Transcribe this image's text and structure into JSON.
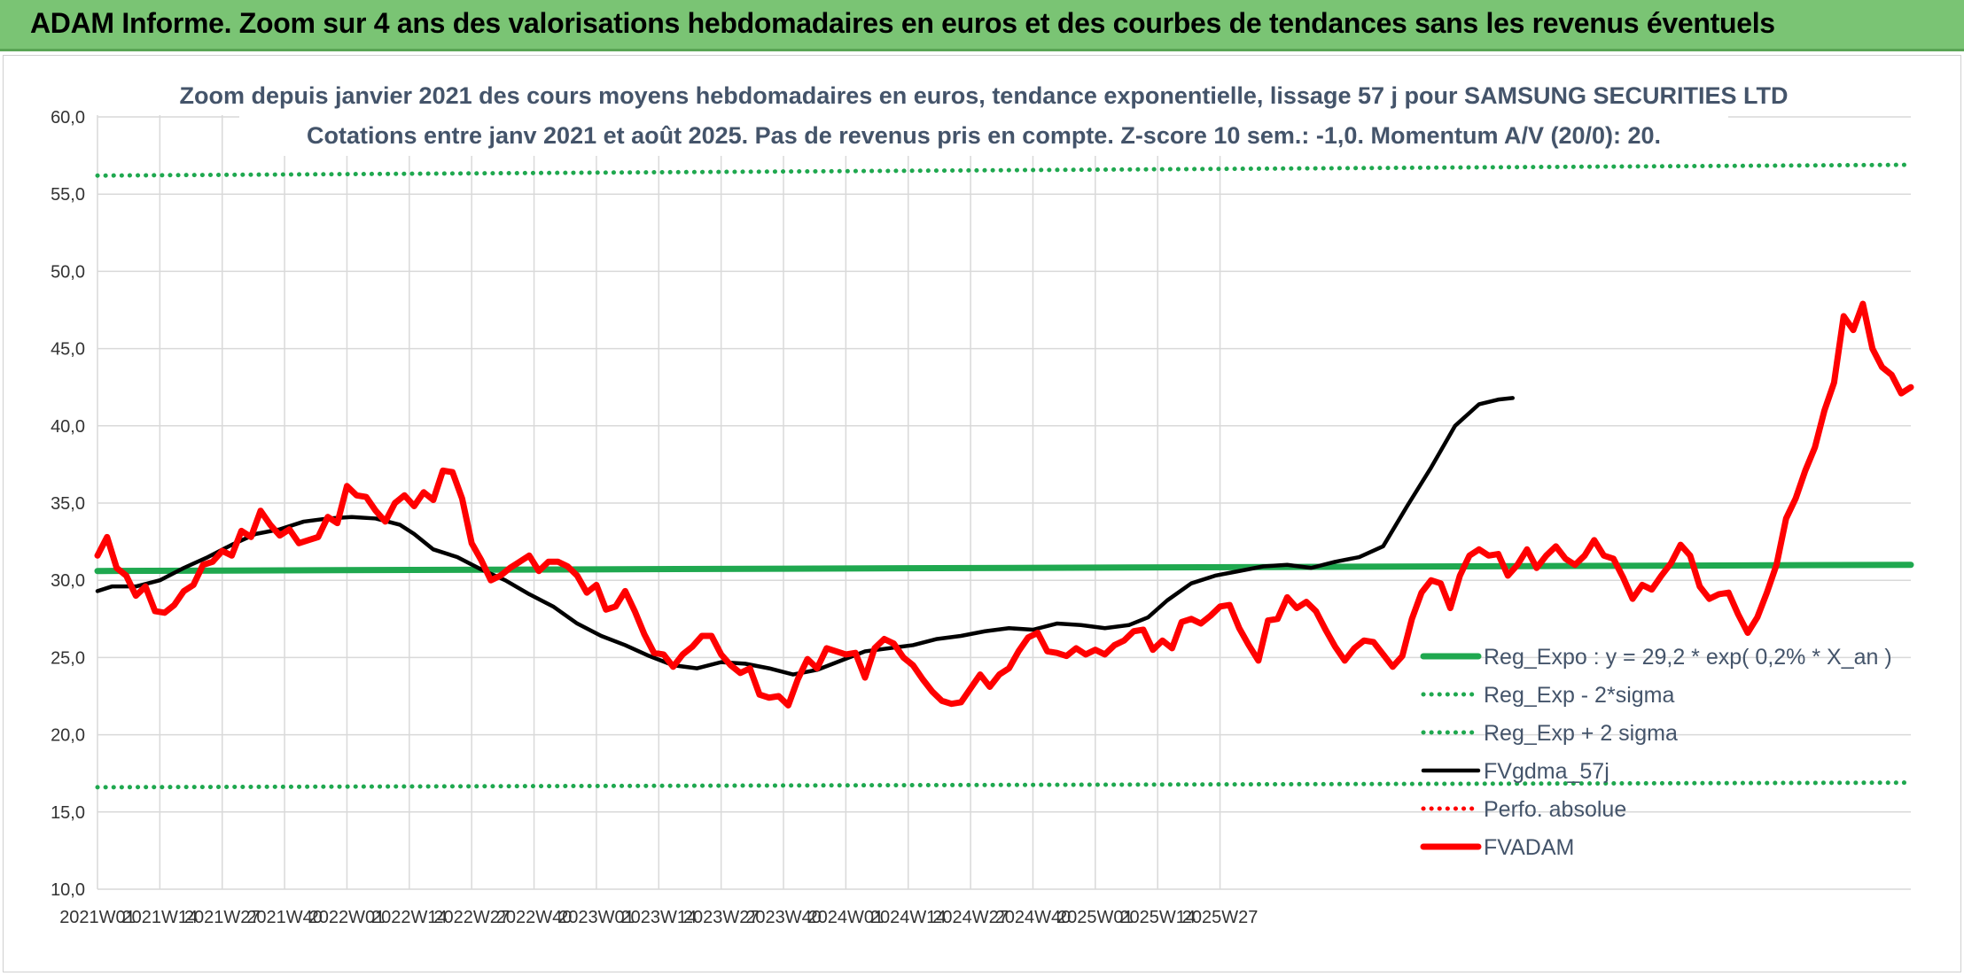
{
  "header": {
    "title": "ADAM Informe. Zoom sur 4 ans des valorisations hebdomadaires en euros et des courbes de tendances sans les revenus éventuels"
  },
  "chart_data": {
    "type": "line",
    "title": "Zoom depuis janvier 2021 des cours moyens hebdomadaires en euros, tendance exponentielle, lissage 57 j pour SAMSUNG SECURITIES LTD",
    "subtitle": "Cotations entre janv 2021 et août 2025. Pas de revenus pris en compte. Z-score 10 sem.: -1,0. Momentum A/V (20/0): 20.",
    "xlabel": "",
    "ylabel": "",
    "ylim": [
      10,
      60
    ],
    "yticks": [
      "10,0",
      "15,0",
      "20,0",
      "25,0",
      "30,0",
      "35,0",
      "40,0",
      "45,0",
      "50,0",
      "55,0",
      "60,0"
    ],
    "x_tick_labels": [
      "2021W01",
      "2021W14",
      "2021W27",
      "2021W40",
      "2022W01",
      "2022W14",
      "2022W27",
      "2022W40",
      "2023W01",
      "2023W14",
      "2023W27",
      "2023W40",
      "2024W01",
      "2024W14",
      "2024W27",
      "2024W40",
      "2025W01",
      "2025W14",
      "2025W27"
    ],
    "grid": true,
    "legend_position": "bottom-right",
    "series": [
      {
        "name": "Reg_Expo : y = 29,2 * exp( 0,2% *  X_an )",
        "color": "#1fa84f",
        "style": "solid-thick",
        "line": [
          [
            0,
            30.6
          ],
          [
            244,
            31.0
          ]
        ]
      },
      {
        "name": "Reg_Exp - 2*sigma",
        "color": "#1fa84f",
        "style": "dotted",
        "line": [
          [
            0,
            16.6
          ],
          [
            244,
            16.9
          ]
        ]
      },
      {
        "name": "Reg_Exp + 2 sigma",
        "color": "#1fa84f",
        "style": "dotted",
        "line": [
          [
            0,
            56.2
          ],
          [
            244,
            56.9
          ]
        ]
      },
      {
        "name": "FVgdma_57j",
        "color": "#000000",
        "style": "solid",
        "points": [
          [
            0,
            29.3
          ],
          [
            3,
            29.6
          ],
          [
            8,
            29.6
          ],
          [
            13,
            30.0
          ],
          [
            18,
            30.8
          ],
          [
            23,
            31.5
          ],
          [
            28,
            32.3
          ],
          [
            33,
            33.0
          ],
          [
            38,
            33.3
          ],
          [
            43,
            33.8
          ],
          [
            48,
            34.0
          ],
          [
            53,
            34.1
          ],
          [
            58,
            34.0
          ],
          [
            63,
            33.6
          ],
          [
            66,
            33.0
          ],
          [
            70,
            32.0
          ],
          [
            75,
            31.5
          ],
          [
            80,
            30.7
          ],
          [
            85,
            30.0
          ],
          [
            90,
            29.1
          ],
          [
            95,
            28.3
          ],
          [
            100,
            27.2
          ],
          [
            105,
            26.4
          ],
          [
            110,
            25.8
          ],
          [
            115,
            25.1
          ],
          [
            120,
            24.5
          ],
          [
            125,
            24.3
          ],
          [
            130,
            24.7
          ],
          [
            135,
            24.6
          ],
          [
            140,
            24.3
          ],
          [
            145,
            23.9
          ],
          [
            150,
            24.2
          ],
          [
            155,
            24.8
          ],
          [
            160,
            25.4
          ],
          [
            165,
            25.6
          ],
          [
            170,
            25.8
          ],
          [
            175,
            26.2
          ],
          [
            180,
            26.4
          ],
          [
            185,
            26.7
          ],
          [
            190,
            26.9
          ],
          [
            195,
            26.8
          ],
          [
            200,
            27.2
          ],
          [
            205,
            27.1
          ],
          [
            210,
            26.9
          ],
          [
            215,
            27.1
          ],
          [
            219,
            27.6
          ],
          [
            223,
            28.7
          ],
          [
            228,
            29.8
          ],
          [
            233,
            30.3
          ],
          [
            238,
            30.6
          ],
          [
            243,
            30.9
          ],
          [
            248,
            31.0
          ],
          [
            253,
            30.8
          ],
          [
            258,
            31.2
          ],
          [
            263,
            31.5
          ],
          [
            268,
            32.2
          ],
          [
            273,
            34.8
          ],
          [
            278,
            37.3
          ],
          [
            283,
            40.0
          ],
          [
            288,
            41.4
          ],
          [
            292,
            41.7
          ],
          [
            295,
            41.8
          ]
        ]
      },
      {
        "name": "Perfo. absolue",
        "color": "#ff0000",
        "style": "dotted",
        "points": []
      },
      {
        "name": "FVADAM",
        "color": "#ff0000",
        "style": "solid-thick",
        "points": [
          [
            0,
            31.6
          ],
          [
            2,
            32.8
          ],
          [
            4,
            30.8
          ],
          [
            6,
            30.3
          ],
          [
            8,
            29.0
          ],
          [
            10,
            29.6
          ],
          [
            12,
            28.0
          ],
          [
            14,
            27.9
          ],
          [
            16,
            28.4
          ],
          [
            18,
            29.3
          ],
          [
            20,
            29.7
          ],
          [
            22,
            31.0
          ],
          [
            24,
            31.2
          ],
          [
            26,
            31.9
          ],
          [
            28,
            31.6
          ],
          [
            30,
            33.2
          ],
          [
            32,
            32.8
          ],
          [
            34,
            34.5
          ],
          [
            36,
            33.6
          ],
          [
            38,
            32.9
          ],
          [
            40,
            33.3
          ],
          [
            42,
            32.4
          ],
          [
            44,
            32.6
          ],
          [
            46,
            32.8
          ],
          [
            48,
            34.1
          ],
          [
            50,
            33.7
          ],
          [
            52,
            36.1
          ],
          [
            54,
            35.5
          ],
          [
            56,
            35.4
          ],
          [
            58,
            34.5
          ],
          [
            60,
            33.8
          ],
          [
            62,
            35.0
          ],
          [
            64,
            35.5
          ],
          [
            66,
            34.8
          ],
          [
            68,
            35.7
          ],
          [
            70,
            35.2
          ],
          [
            72,
            37.1
          ],
          [
            74,
            37.0
          ],
          [
            76,
            35.3
          ],
          [
            78,
            32.4
          ],
          [
            80,
            31.3
          ],
          [
            82,
            30.0
          ],
          [
            84,
            30.3
          ],
          [
            86,
            30.8
          ],
          [
            88,
            31.2
          ],
          [
            90,
            31.6
          ],
          [
            92,
            30.6
          ],
          [
            94,
            31.2
          ],
          [
            96,
            31.2
          ],
          [
            98,
            30.9
          ],
          [
            100,
            30.3
          ],
          [
            102,
            29.2
          ],
          [
            104,
            29.7
          ],
          [
            106,
            28.1
          ],
          [
            108,
            28.3
          ],
          [
            110,
            29.3
          ],
          [
            112,
            28.0
          ],
          [
            114,
            26.5
          ],
          [
            116,
            25.3
          ],
          [
            118,
            25.2
          ],
          [
            120,
            24.4
          ],
          [
            122,
            25.2
          ],
          [
            124,
            25.7
          ],
          [
            126,
            26.4
          ],
          [
            128,
            26.4
          ],
          [
            130,
            25.2
          ],
          [
            132,
            24.5
          ],
          [
            134,
            24.0
          ],
          [
            136,
            24.3
          ],
          [
            138,
            22.6
          ],
          [
            140,
            22.4
          ],
          [
            142,
            22.5
          ],
          [
            144,
            21.9
          ],
          [
            146,
            23.6
          ],
          [
            148,
            24.9
          ],
          [
            150,
            24.3
          ],
          [
            152,
            25.6
          ],
          [
            154,
            25.4
          ],
          [
            156,
            25.2
          ],
          [
            158,
            25.3
          ],
          [
            160,
            23.7
          ],
          [
            162,
            25.6
          ],
          [
            164,
            26.2
          ],
          [
            166,
            25.9
          ],
          [
            168,
            25.0
          ],
          [
            170,
            24.5
          ],
          [
            172,
            23.6
          ],
          [
            174,
            22.8
          ],
          [
            176,
            22.2
          ],
          [
            178,
            22.0
          ],
          [
            180,
            22.1
          ],
          [
            182,
            23.0
          ],
          [
            184,
            23.9
          ],
          [
            186,
            23.1
          ],
          [
            188,
            23.9
          ],
          [
            190,
            24.3
          ],
          [
            192,
            25.4
          ],
          [
            194,
            26.3
          ],
          [
            196,
            26.6
          ],
          [
            198,
            25.4
          ],
          [
            200,
            25.3
          ],
          [
            202,
            25.1
          ],
          [
            204,
            25.6
          ],
          [
            206,
            25.2
          ],
          [
            208,
            25.5
          ],
          [
            210,
            25.2
          ],
          [
            212,
            25.8
          ],
          [
            214,
            26.1
          ],
          [
            216,
            26.7
          ],
          [
            218,
            26.8
          ],
          [
            220,
            25.5
          ],
          [
            222,
            26.1
          ],
          [
            224,
            25.6
          ],
          [
            226,
            27.3
          ],
          [
            228,
            27.5
          ],
          [
            230,
            27.2
          ],
          [
            232,
            27.7
          ],
          [
            234,
            28.3
          ],
          [
            236,
            28.4
          ],
          [
            238,
            26.9
          ],
          [
            240,
            25.8
          ],
          [
            242,
            24.8
          ],
          [
            244,
            27.4
          ],
          [
            246,
            27.5
          ],
          [
            248,
            28.9
          ],
          [
            250,
            28.2
          ],
          [
            252,
            28.6
          ],
          [
            254,
            28.0
          ],
          [
            256,
            26.8
          ],
          [
            258,
            25.7
          ],
          [
            260,
            24.8
          ],
          [
            262,
            25.6
          ],
          [
            264,
            26.1
          ],
          [
            266,
            26.0
          ],
          [
            268,
            25.2
          ],
          [
            270,
            24.4
          ],
          [
            272,
            25.1
          ],
          [
            274,
            27.5
          ],
          [
            276,
            29.2
          ],
          [
            278,
            30.0
          ],
          [
            280,
            29.8
          ],
          [
            282,
            28.2
          ],
          [
            284,
            30.3
          ],
          [
            286,
            31.6
          ],
          [
            288,
            32.0
          ],
          [
            290,
            31.6
          ],
          [
            292,
            31.7
          ],
          [
            294,
            30.3
          ],
          [
            296,
            31.0
          ],
          [
            298,
            32.0
          ],
          [
            300,
            30.8
          ],
          [
            302,
            31.6
          ],
          [
            304,
            32.2
          ],
          [
            306,
            31.4
          ],
          [
            308,
            31.0
          ],
          [
            310,
            31.6
          ],
          [
            312,
            32.6
          ],
          [
            314,
            31.6
          ],
          [
            316,
            31.4
          ],
          [
            318,
            30.2
          ],
          [
            320,
            28.8
          ],
          [
            322,
            29.7
          ],
          [
            324,
            29.4
          ],
          [
            326,
            30.3
          ],
          [
            328,
            31.1
          ],
          [
            330,
            32.3
          ],
          [
            332,
            31.6
          ],
          [
            334,
            29.6
          ],
          [
            336,
            28.8
          ],
          [
            338,
            29.1
          ],
          [
            340,
            29.2
          ],
          [
            342,
            27.8
          ],
          [
            344,
            26.6
          ],
          [
            346,
            27.6
          ],
          [
            348,
            29.2
          ],
          [
            350,
            31.0
          ],
          [
            352,
            34.0
          ],
          [
            354,
            35.3
          ],
          [
            356,
            37.1
          ],
          [
            358,
            38.6
          ],
          [
            360,
            41.0
          ],
          [
            362,
            42.8
          ],
          [
            364,
            47.1
          ],
          [
            366,
            46.2
          ],
          [
            368,
            47.9
          ],
          [
            370,
            45.0
          ],
          [
            372,
            43.8
          ],
          [
            374,
            43.3
          ],
          [
            376,
            42.1
          ],
          [
            378,
            42.5
          ]
        ]
      }
    ]
  }
}
